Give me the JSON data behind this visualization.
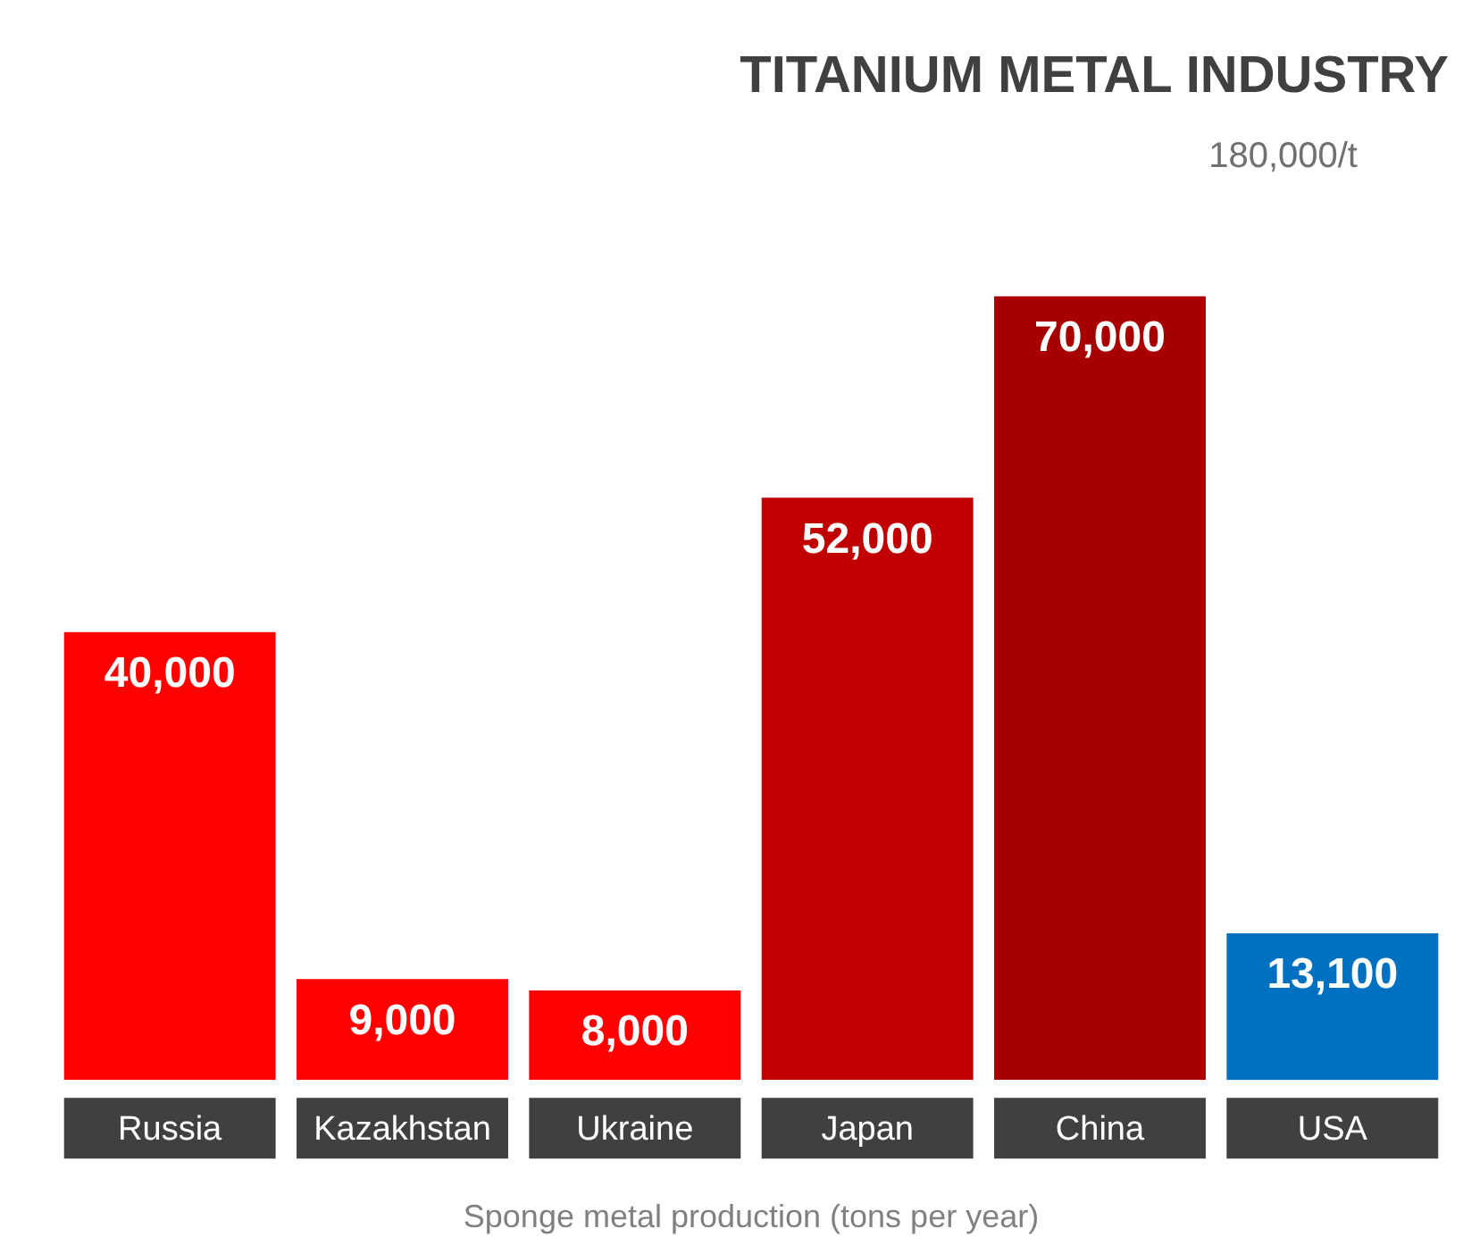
{
  "chart_data": {
    "type": "bar",
    "title": "TITANIUM METAL INDUSTRY",
    "xlabel": "Sponge metal production (tons per year)",
    "annotations": [
      "180,000/t"
    ],
    "categories": [
      "Russia",
      "Kazakhstan",
      "Ukraine",
      "Japan",
      "China",
      "USA"
    ],
    "values": [
      40000,
      9000,
      8000,
      52000,
      70000,
      13100
    ],
    "colors": [
      "#ff0000",
      "#ff0000",
      "#ff0000",
      "#c00000",
      "#a80000",
      "#0070c0"
    ],
    "value_labels": [
      "40,000",
      "9,000",
      "8,000",
      "52,000",
      "70,000",
      "13,100"
    ],
    "grid": false,
    "legend": false
  }
}
